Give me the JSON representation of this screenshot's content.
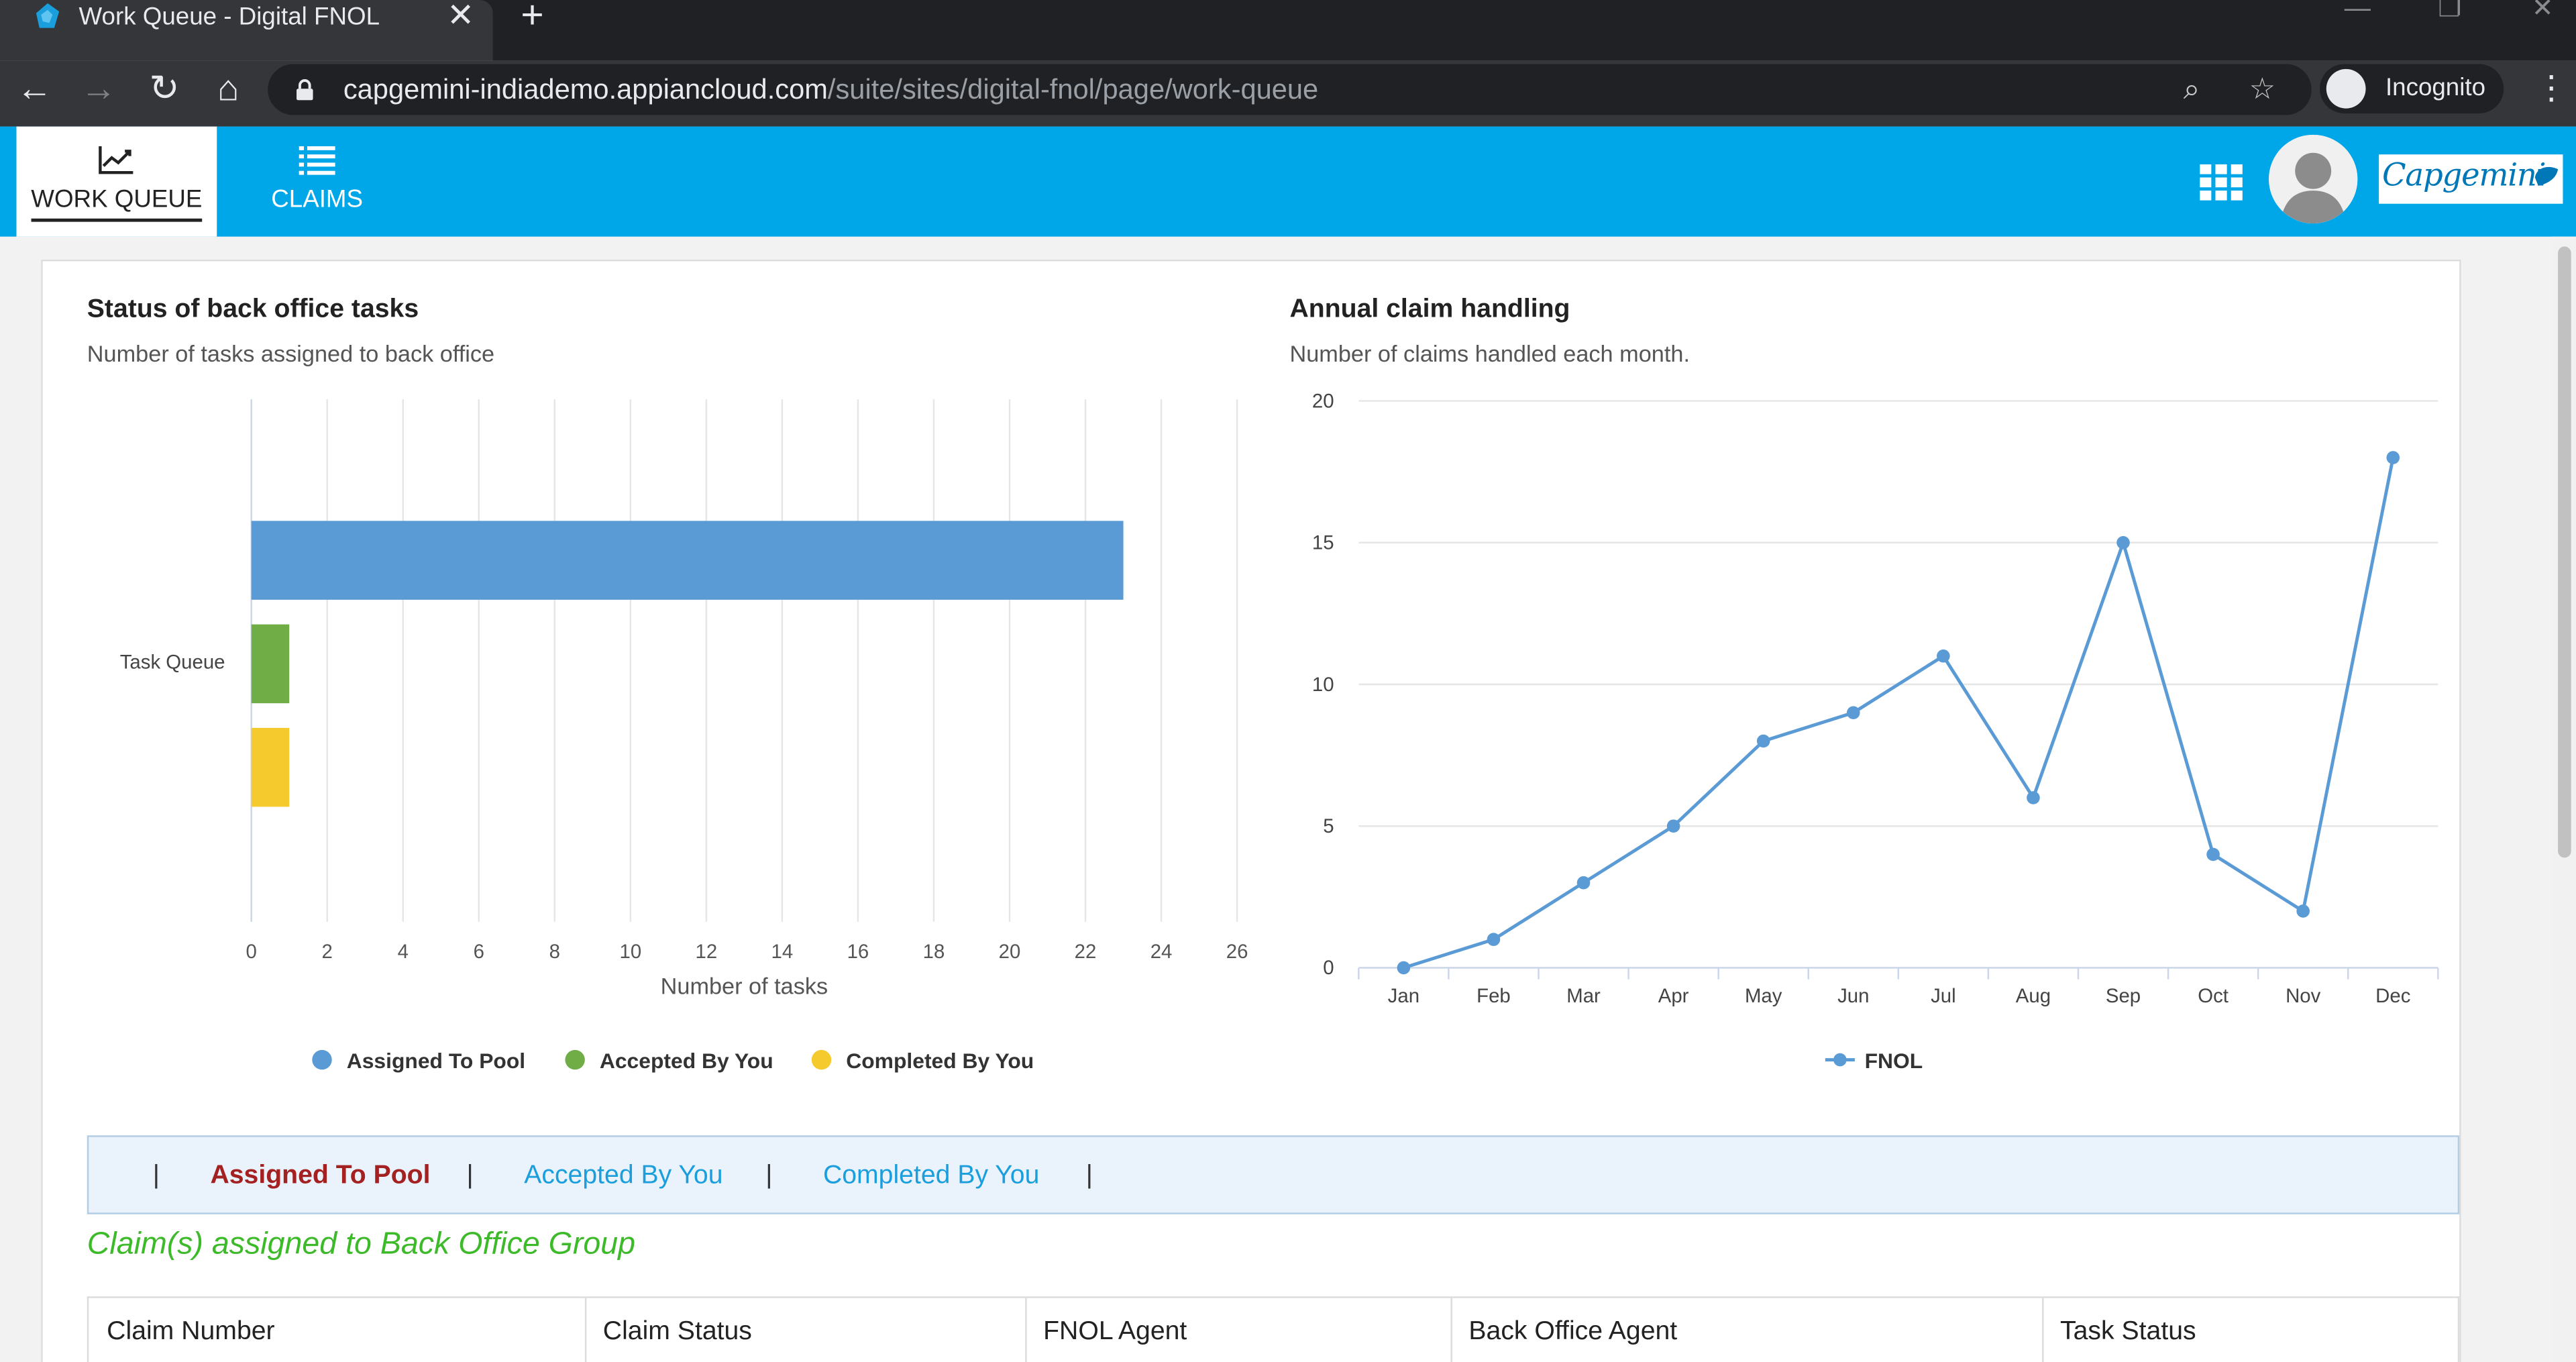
{
  "browser": {
    "tab_title": "Work Queue - Digital FNOL",
    "url_host": "capgemini-indiademo.appiancloud.com",
    "url_path": "/suite/sites/digital-fnol/page/work-queue",
    "profile_label": "Incognito"
  },
  "app": {
    "nav": [
      {
        "label": "WORK QUEUE",
        "icon": "line-chart-icon",
        "active": true
      },
      {
        "label": "CLAIMS",
        "icon": "list-icon",
        "active": false
      }
    ],
    "logo_text": "Capgemini",
    "accent_color": "#00a7e8"
  },
  "tasks_chart": {
    "title": "Status of back office tasks",
    "subtitle": "Number of tasks assigned to back office"
  },
  "claims_chart": {
    "title": "Annual claim handling",
    "subtitle": "Number of claims handled each month."
  },
  "chart_data": [
    {
      "type": "bar",
      "orientation": "horizontal",
      "title": "Status of back office tasks",
      "subtitle": "Number of tasks assigned to back office",
      "categories": [
        "Task Queue"
      ],
      "xlabel": "Number of tasks",
      "xlim": [
        0,
        26
      ],
      "xticks": [
        0,
        2,
        4,
        6,
        8,
        10,
        12,
        14,
        16,
        18,
        20,
        22,
        24,
        26
      ],
      "grid": true,
      "legend_position": "bottom",
      "series": [
        {
          "name": "Assigned To Pool",
          "values": [
            23
          ],
          "color": "#5b9bd5"
        },
        {
          "name": "Accepted By You",
          "values": [
            1
          ],
          "color": "#70ad47"
        },
        {
          "name": "Completed By You",
          "values": [
            1
          ],
          "color": "#f4ca2c"
        }
      ]
    },
    {
      "type": "line",
      "title": "Annual claim handling",
      "subtitle": "Number of claims handled each month.",
      "categories": [
        "Jan",
        "Feb",
        "Mar",
        "Apr",
        "May",
        "Jun",
        "Jul",
        "Aug",
        "Sep",
        "Oct",
        "Nov",
        "Dec"
      ],
      "ylim": [
        0,
        20
      ],
      "yticks": [
        0,
        5,
        10,
        15,
        20
      ],
      "grid": true,
      "legend_position": "bottom",
      "series": [
        {
          "name": "FNOL",
          "values": [
            0,
            1,
            3,
            5,
            8,
            9,
            11,
            6,
            15,
            4,
            2,
            18
          ],
          "color": "#5b9bd5"
        }
      ]
    }
  ],
  "filters": [
    {
      "label": "Assigned To Pool",
      "active": true,
      "color": "#a32121"
    },
    {
      "label": "Accepted By You",
      "active": false,
      "color": "#1a9fdc"
    },
    {
      "label": "Completed By You",
      "active": false,
      "color": "#1a9fdc"
    }
  ],
  "group_note": "Claim(s) assigned to Back Office Group",
  "table": {
    "columns": [
      "Claim Number",
      "Claim Status",
      "FNOL Agent",
      "Back Office Agent",
      "Task Status"
    ]
  }
}
